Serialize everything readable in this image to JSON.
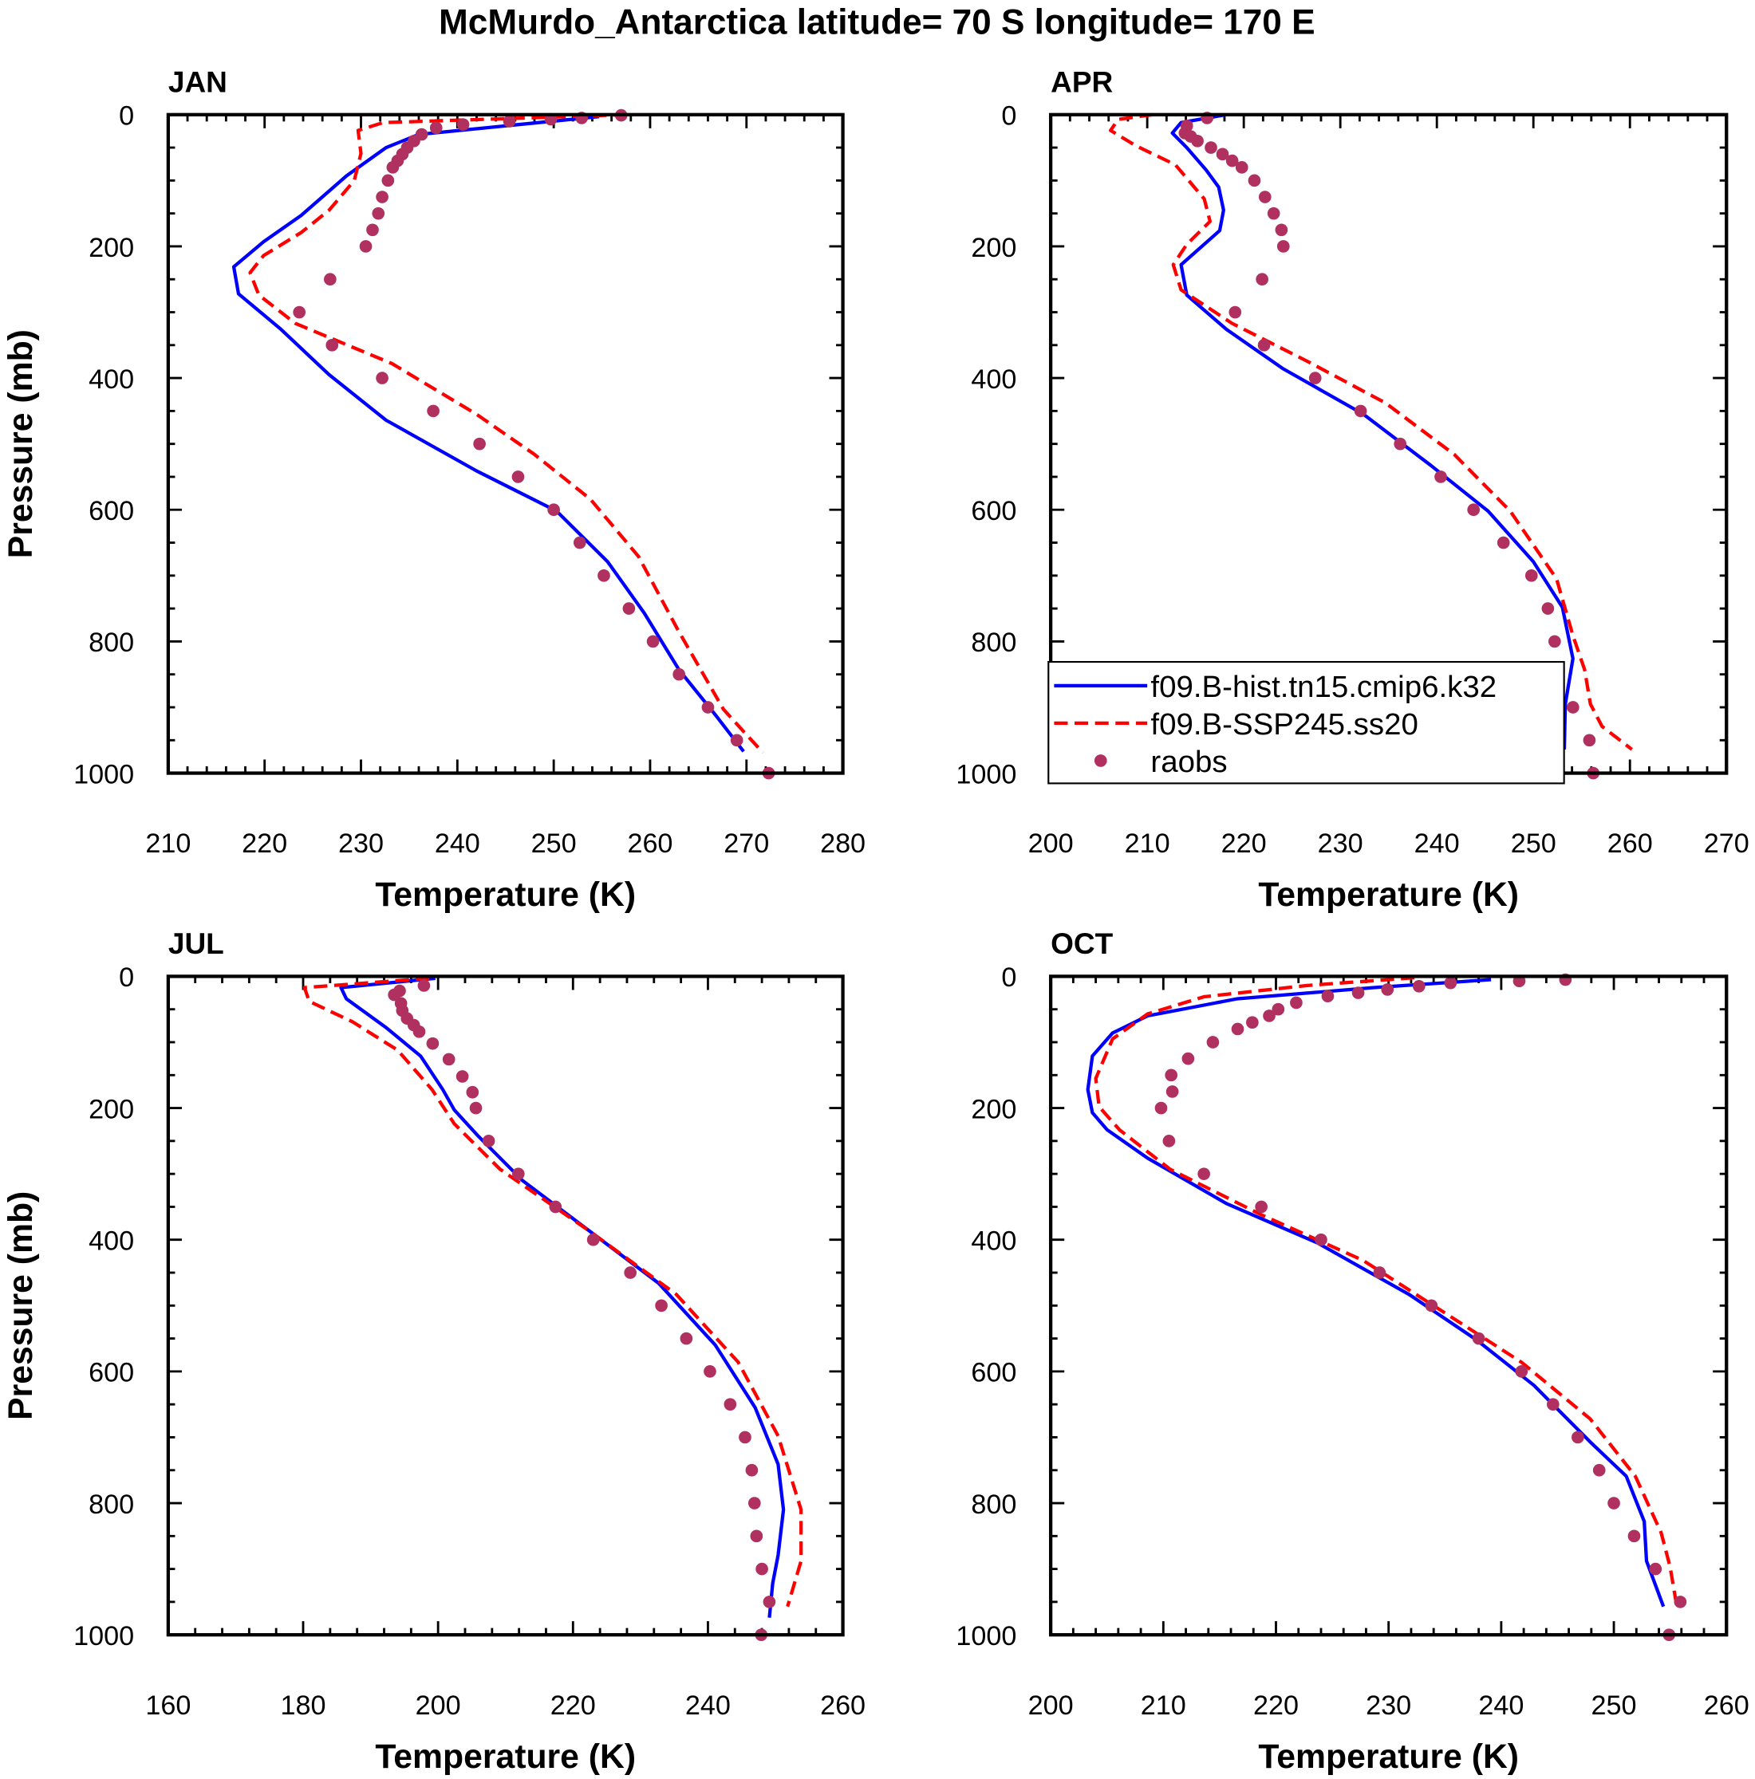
{
  "title": "McMurdo_Antarctica  latitude= 70 S longitude= 170 E",
  "legend": {
    "placement": "bottom-right of APR panel",
    "entries": [
      {
        "label": "f09.B-hist.tn15.cmip6.k32",
        "color": "#0000ff",
        "style": "solid"
      },
      {
        "label": "f09.B-SSP245.ss20",
        "color": "#ff0000",
        "style": "dashed"
      },
      {
        "label": "raobs",
        "color": "#b03060",
        "style": "marker"
      }
    ]
  },
  "chart_data": [
    {
      "type": "line",
      "panel": "JAN",
      "xlabel": "Temperature (K)",
      "ylabel": "Pressure (mb)",
      "xlim": [
        210,
        280
      ],
      "xticks": [
        210,
        220,
        230,
        240,
        250,
        260,
        270,
        280
      ],
      "ylim": [
        1000,
        0
      ],
      "yticks": [
        0,
        200,
        400,
        600,
        800,
        1000
      ],
      "y_reversed": true,
      "series": [
        {
          "name": "f09.B-hist.tn15.cmip6.k32",
          "T": [
            254.7,
            236,
            232.6,
            228.5,
            223.8,
            219.9,
            216.8,
            217.3,
            221.7,
            226.7,
            232.6,
            242,
            250.3,
            255.6,
            259.4,
            263,
            266.8,
            269.7
          ],
          "p": [
            3,
            30,
            50,
            93,
            153,
            193,
            231,
            272,
            326,
            395,
            464,
            541,
            602,
            679,
            757,
            843,
            912,
            967
          ]
        },
        {
          "name": "f09.B-SSP245.ss20",
          "T": [
            257.6,
            232.3,
            229.7,
            230,
            229.3,
            226.7,
            223.8,
            219.9,
            218.5,
            219.4,
            223.2,
            233.2,
            242,
            248,
            253.8,
            258.8,
            262.9,
            267.6,
            271.7
          ],
          "p": [
            0,
            12,
            24,
            59,
            100,
            145,
            179,
            214,
            240,
            274,
            317,
            378,
            455,
            516,
            584,
            671,
            783,
            903,
            969
          ]
        },
        {
          "name": "raobs",
          "T": [
            257,
            252.9,
            249.7,
            245.4,
            240.6,
            237.8,
            236.3,
            235.5,
            234.8,
            234.3,
            233.8,
            233.3,
            232.8,
            232.2,
            231.8,
            231.2,
            230.5,
            226.8,
            223.6,
            227,
            232.2,
            237.5,
            242.3,
            246.3,
            250,
            252.7,
            255.2,
            257.8,
            260.3,
            263,
            266,
            269,
            272.3
          ],
          "p": [
            1,
            5,
            7,
            10,
            15,
            20,
            30,
            40,
            50,
            60,
            70,
            80,
            100,
            125,
            150,
            175,
            200,
            250,
            300,
            350,
            400,
            450,
            500,
            550,
            600,
            650,
            700,
            750,
            800,
            850,
            900,
            950,
            1000
          ]
        }
      ]
    },
    {
      "type": "line",
      "panel": "APR",
      "xlabel": "Temperature (K)",
      "ylabel": "",
      "xlim": [
        200,
        270
      ],
      "xticks": [
        200,
        210,
        220,
        230,
        240,
        250,
        260,
        270
      ],
      "ylim": [
        1000,
        0
      ],
      "yticks": [
        0,
        200,
        400,
        600,
        800,
        1000
      ],
      "y_reversed": true,
      "series": [
        {
          "name": "f09.B-hist.tn15.cmip6.k32",
          "T": [
            218.2,
            213.5,
            212.6,
            214.1,
            216.1,
            217.4,
            217.9,
            217.5,
            213.5,
            214.1,
            218.2,
            224.1,
            232.4,
            239.4,
            245.3,
            250,
            253,
            254.1,
            253.3,
            253.2
          ],
          "p": [
            0,
            12,
            28,
            50,
            84,
            110,
            145,
            176,
            228,
            274,
            326,
            386,
            455,
            533,
            602,
            679,
            748,
            826,
            895,
            964
          ]
        },
        {
          "name": "f09.B-SSP245.ss20",
          "T": [
            210.6,
            207,
            206.2,
            208.8,
            212.9,
            215.9,
            216.5,
            214.1,
            212.7,
            213.5,
            218.8,
            226.5,
            234.7,
            241.8,
            247.6,
            252.4,
            254.1,
            255.3,
            255.9,
            257.1,
            260.2
          ],
          "p": [
            0,
            7,
            24,
            47,
            76,
            128,
            162,
            197,
            228,
            266,
            317,
            374,
            438,
            516,
            602,
            705,
            791,
            843,
            895,
            929,
            964
          ]
        },
        {
          "name": "raobs",
          "T": [
            216.2,
            214.1,
            213.9,
            214.5,
            215.2,
            216.6,
            217.8,
            218.8,
            219.8,
            221.1,
            222.2,
            223.1,
            223.9,
            224.1,
            221.9,
            219.1,
            222.1,
            227.4,
            232.1,
            236.2,
            240.4,
            243.8,
            246.9,
            249.8,
            251.5,
            252.2,
            252.5,
            254.1,
            255.8,
            256.2
          ],
          "p": [
            5,
            17,
            28,
            33,
            40,
            50,
            60,
            70,
            80,
            100,
            125,
            150,
            175,
            200,
            250,
            300,
            350,
            400,
            450,
            500,
            550,
            600,
            650,
            700,
            750,
            800,
            850,
            900,
            950,
            1000
          ]
        }
      ]
    },
    {
      "type": "line",
      "panel": "JUL",
      "xlabel": "Temperature (K)",
      "ylabel": "Pressure (mb)",
      "xlim": [
        160,
        260
      ],
      "xticks": [
        160,
        180,
        200,
        220,
        240,
        260
      ],
      "ylim": [
        1000,
        0
      ],
      "yticks": [
        0,
        200,
        400,
        600,
        800,
        1000
      ],
      "y_reversed": true,
      "series": [
        {
          "name": "f09.B-hist.tn15.cmip6.k32",
          "T": [
            199.6,
            185.6,
            186.4,
            192.3,
            197.4,
            200.7,
            202.4,
            205.8,
            212.5,
            222.6,
            232.7,
            241.1,
            247,
            250.4,
            251.2,
            250.4,
            249.6,
            249.1
          ],
          "p": [
            3,
            17,
            34,
            78,
            121,
            172,
            203,
            241,
            310,
            388,
            466,
            560,
            655,
            741,
            810,
            879,
            922,
            974
          ]
        },
        {
          "name": "f09.B-SSP245.ss20",
          "T": [
            198.7,
            180.2,
            180.9,
            187.3,
            194,
            199.1,
            202.4,
            209.2,
            222.6,
            235.3,
            244.5,
            250.4,
            253.8,
            253.8,
            251.8
          ],
          "p": [
            3,
            17,
            38,
            69,
            112,
            172,
            224,
            293,
            388,
            483,
            586,
            698,
            810,
            888,
            957
          ]
        },
        {
          "name": "raobs",
          "T": [
            197.9,
            194.3,
            193.5,
            194.5,
            194.7,
            195.4,
            196.4,
            197.2,
            199.2,
            201.6,
            203.6,
            205.1,
            205.6,
            207.5,
            211.9,
            217.4,
            223,
            228.5,
            233.1,
            236.8,
            240.3,
            243.3,
            245.5,
            246.5,
            246.9,
            247.2,
            248,
            249.1,
            247.9
          ],
          "p": [
            14,
            22,
            28,
            41,
            52,
            64,
            74,
            84,
            102,
            126,
            152,
            176,
            200,
            250,
            300,
            350,
            400,
            450,
            500,
            550,
            600,
            650,
            700,
            750,
            800,
            850,
            900,
            950,
            1000
          ]
        }
      ]
    },
    {
      "type": "line",
      "panel": "OCT",
      "xlabel": "Temperature (K)",
      "ylabel": "",
      "xlim": [
        200,
        260
      ],
      "xticks": [
        200,
        210,
        220,
        230,
        240,
        250,
        260
      ],
      "ylim": [
        1000,
        0
      ],
      "yticks": [
        0,
        200,
        400,
        600,
        800,
        1000
      ],
      "y_reversed": true,
      "series": [
        {
          "name": "f09.B-hist.tn15.cmip6.k32",
          "T": [
            239.1,
            228.7,
            216.6,
            208.6,
            205.5,
            203.7,
            203.3,
            203.7,
            205,
            208.6,
            215.6,
            223.7,
            231.8,
            237.8,
            242.9,
            247.9,
            251.1,
            252.7,
            252.9,
            254.4
          ],
          "p": [
            5,
            17,
            34,
            60,
            86,
            121,
            172,
            207,
            233,
            276,
            345,
            405,
            483,
            552,
            621,
            707,
            759,
            828,
            888,
            957
          ]
        },
        {
          "name": "f09.B-SSP245.ss20",
          "T": [
            232.3,
            222.7,
            213.6,
            208.6,
            205.5,
            204,
            204.3,
            206.1,
            210.6,
            218.7,
            227.7,
            234.8,
            241.8,
            247.9,
            251.9,
            254.2,
            255,
            255.5
          ],
          "p": [
            2,
            14,
            31,
            57,
            95,
            155,
            198,
            233,
            293,
            362,
            431,
            509,
            586,
            672,
            759,
            845,
            897,
            948
          ]
        },
        {
          "name": "raobs",
          "T": [
            245.7,
            241.6,
            235.5,
            232.7,
            229.9,
            227.3,
            224.6,
            221.8,
            220.2,
            219.4,
            217.9,
            216.6,
            214.4,
            212.2,
            210.7,
            210.8,
            209.8,
            210.5,
            213.6,
            218.7,
            224,
            229.2,
            233.8,
            238,
            241.8,
            244.6,
            246.8,
            248.7,
            250,
            251.8,
            253.7,
            255.9,
            254.9
          ],
          "p": [
            5,
            7,
            10,
            15,
            20,
            25,
            30,
            40,
            50,
            60,
            70,
            80,
            100,
            125,
            150,
            175,
            200,
            250,
            300,
            350,
            400,
            450,
            500,
            550,
            600,
            650,
            700,
            750,
            800,
            850,
            900,
            950,
            1000
          ]
        }
      ]
    }
  ]
}
